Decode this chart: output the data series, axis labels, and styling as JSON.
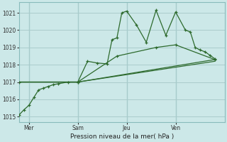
{
  "bg_color": "#cce8e8",
  "grid_color": "#aacccc",
  "line_color": "#2d6a2d",
  "title": "Pression niveau de la mer( hPa )",
  "ylabel_ticks": [
    1015,
    1016,
    1017,
    1018,
    1019,
    1020,
    1021
  ],
  "ylim": [
    1014.7,
    1021.6
  ],
  "xlim": [
    0,
    21
  ],
  "xtick_positions": [
    1,
    6,
    11,
    16
  ],
  "xtick_labels": [
    "Mer",
    "Sam",
    "Jeu",
    "Ven"
  ],
  "vline_positions": [
    1,
    6,
    11,
    16
  ],
  "series1_x": [
    0,
    0.5,
    1,
    1.5,
    2,
    2.5,
    3,
    3.5,
    4,
    5,
    6,
    7,
    8,
    9,
    9.5,
    10,
    10.5,
    11,
    12,
    13,
    14,
    15,
    16,
    17,
    17.5,
    18,
    18.5,
    19,
    19.5,
    20
  ],
  "series1_y": [
    1015.1,
    1015.4,
    1015.65,
    1016.1,
    1016.55,
    1016.65,
    1016.75,
    1016.85,
    1016.9,
    1017.0,
    1017.0,
    1018.2,
    1018.1,
    1018.05,
    1019.45,
    1019.55,
    1021.0,
    1021.1,
    1020.3,
    1019.3,
    1021.15,
    1019.7,
    1021.05,
    1020.0,
    1019.9,
    1019.0,
    1018.85,
    1018.75,
    1018.55,
    1018.35
  ],
  "series2_x": [
    0,
    6,
    10,
    14,
    16,
    20
  ],
  "series2_y": [
    1017.0,
    1017.0,
    1018.5,
    1019.0,
    1019.15,
    1018.3
  ],
  "series3_x": [
    0,
    6,
    20
  ],
  "series3_y": [
    1017.0,
    1017.0,
    1018.3
  ],
  "series4_x": [
    0,
    6,
    20
  ],
  "series4_y": [
    1017.0,
    1017.0,
    1018.2
  ]
}
